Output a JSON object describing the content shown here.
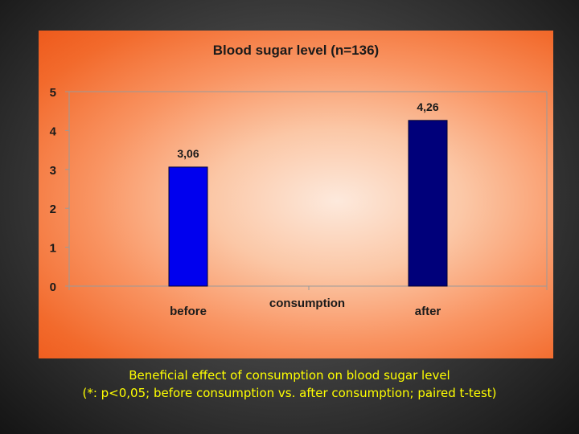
{
  "chart_data": {
    "type": "bar",
    "title": "Blood sugar level (n=136)",
    "xlabel": "consumption",
    "ylabel": "",
    "categories": [
      "before",
      "after"
    ],
    "values": [
      3.06,
      4.26
    ],
    "data_labels": [
      "3,06",
      "4,26"
    ],
    "bar_colors": [
      "#0000ee",
      "#00007a"
    ],
    "ylim": [
      0,
      5
    ],
    "yticks": [
      "0",
      "1",
      "2",
      "3",
      "4",
      "5"
    ],
    "grid": false,
    "legend": "none"
  },
  "caption": {
    "line1": "Beneficial effect of consumption on blood sugar level",
    "line2": "(*: p<0,05; before consumption vs. after consumption; paired t-test)"
  },
  "colors": {
    "caption_text": "#ffff00",
    "axis": "#9a9a9a"
  }
}
